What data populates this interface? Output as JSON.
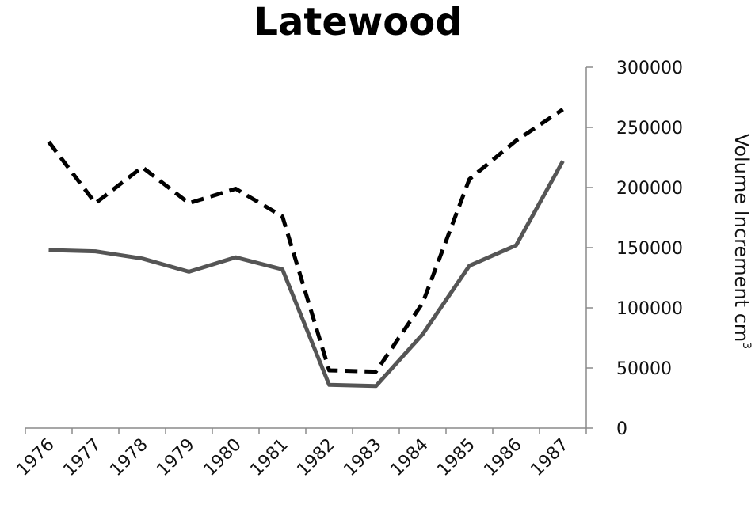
{
  "chart_data": {
    "type": "line",
    "title": "Latewood",
    "xlabel": "",
    "ylabel": "Volume Increment cm",
    "ylabel_sup": "3",
    "categories": [
      "1976",
      "1977",
      "1978",
      "1979",
      "1980",
      "1981",
      "1982",
      "1983",
      "1984",
      "1985",
      "1986",
      "1987"
    ],
    "y_axis_position": "right",
    "ylim": [
      0,
      300000
    ],
    "yticks": [
      {
        "value": 0,
        "label": "0"
      },
      {
        "value": 50000,
        "label": "50000"
      },
      {
        "value": 100000,
        "label": "100000"
      },
      {
        "value": 150000,
        "label": "150000"
      },
      {
        "value": 200000,
        "label": "200000"
      },
      {
        "value": 250000,
        "label": "250000"
      },
      {
        "value": 300000,
        "label": "300000"
      }
    ],
    "grid": false,
    "legend": "none",
    "series": [
      {
        "style": "dashed",
        "color": "#000000",
        "values": [
          238000,
          187000,
          217000,
          187000,
          199000,
          176000,
          48000,
          47000,
          104000,
          207000,
          239000,
          265000
        ]
      },
      {
        "style": "solid",
        "color": "#555555",
        "values": [
          148000,
          147000,
          141000,
          130000,
          142000,
          132000,
          36000,
          35000,
          78000,
          135000,
          152000,
          222000
        ]
      }
    ]
  }
}
